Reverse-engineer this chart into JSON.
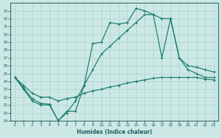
{
  "xlabel": "Humidex (Indice chaleur)",
  "xlim": [
    -0.5,
    23.5
  ],
  "ylim": [
    19,
    34
  ],
  "yticks": [
    19,
    20,
    21,
    22,
    23,
    24,
    25,
    26,
    27,
    28,
    29,
    30,
    31,
    32,
    33
  ],
  "xticks": [
    0,
    1,
    2,
    3,
    4,
    5,
    6,
    7,
    8,
    9,
    10,
    11,
    12,
    13,
    14,
    15,
    16,
    17,
    18,
    19,
    20,
    21,
    22,
    23
  ],
  "bg_color": "#cce8e5",
  "grid_color": "#b0d8d5",
  "line_color": "#1a7a6e",
  "line1_x": [
    0,
    1,
    2,
    3,
    4,
    5,
    6,
    7,
    8,
    9,
    10,
    11,
    12,
    13,
    14,
    15,
    16,
    17,
    18,
    19,
    20,
    21,
    22,
    23
  ],
  "line1_y": [
    24.5,
    23.2,
    21.8,
    21.2,
    21.1,
    19.0,
    20.2,
    20.2,
    23.5,
    28.8,
    29.0,
    31.5,
    31.3,
    31.5,
    33.3,
    33.0,
    32.5,
    27.0,
    32.0,
    27.0,
    25.5,
    25.0,
    24.5,
    24.5
  ],
  "line2_x": [
    0,
    1,
    2,
    3,
    4,
    5,
    6,
    7,
    8,
    9,
    10,
    11,
    12,
    13,
    14,
    15,
    16,
    17,
    18,
    19,
    20,
    21,
    22,
    23
  ],
  "line2_y": [
    24.5,
    23.0,
    21.5,
    21.0,
    21.0,
    19.0,
    20.0,
    21.5,
    23.5,
    25.5,
    27.5,
    28.5,
    29.5,
    30.5,
    31.5,
    32.5,
    32.5,
    32.0,
    32.0,
    27.0,
    26.0,
    25.8,
    25.5,
    25.2
  ],
  "line3_x": [
    0,
    1,
    2,
    3,
    4,
    5,
    6,
    7,
    8,
    9,
    10,
    11,
    12,
    13,
    14,
    15,
    16,
    17,
    18,
    19,
    20,
    21,
    22,
    23
  ],
  "line3_y": [
    24.5,
    23.5,
    22.5,
    22.0,
    22.0,
    21.5,
    21.8,
    22.0,
    22.5,
    22.8,
    23.0,
    23.3,
    23.5,
    23.8,
    24.0,
    24.2,
    24.4,
    24.5,
    24.5,
    24.5,
    24.5,
    24.5,
    24.3,
    24.2
  ]
}
